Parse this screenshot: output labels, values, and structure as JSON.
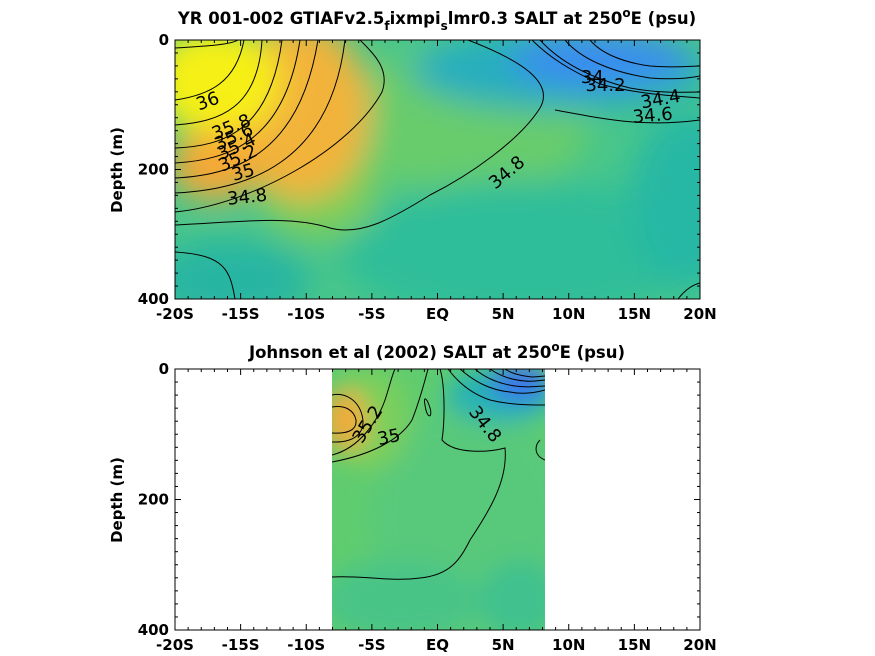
{
  "chart_data": [
    {
      "type": "heatmap",
      "title_main": "YR 001-002 GTIAFv2.5",
      "title_sub1": "f",
      "title_mid": "ixmpi",
      "title_sub2": "s",
      "title_tail": "lmr0.3 SALT at 250",
      "title_sup": "o",
      "title_end": "E (psu)",
      "xlabel": "",
      "ylabel": "Depth (m)",
      "xlim": [
        -20,
        20
      ],
      "ylim": [
        0,
        400
      ],
      "x_ticks": [
        -20,
        -15,
        -10,
        -5,
        0,
        5,
        10,
        15,
        20
      ],
      "x_tick_labels": [
        "-20S",
        "-15S",
        "-10S",
        "-5S",
        "EQ",
        "5N",
        "10N",
        "15N",
        "20N"
      ],
      "y_ticks": [
        0,
        200,
        400
      ],
      "y_tick_labels": [
        "0",
        "200",
        "400"
      ],
      "data_extent_x": [
        -20,
        20
      ],
      "colors": {
        "high": "#f5f31f",
        "mid_high": "#f3ad3a",
        "mid": "#6fcf68",
        "low": "#2ebb9c",
        "fresh": "#3a8df0"
      },
      "contour_labels": [
        {
          "text": "36",
          "x": -17.5,
          "y": 95,
          "angle": -20
        },
        {
          "text": "35.8",
          "x": -15.7,
          "y": 135,
          "angle": -22
        },
        {
          "text": "35.6",
          "x": -15.5,
          "y": 150,
          "angle": -25
        },
        {
          "text": "35.4",
          "x": -15.3,
          "y": 165,
          "angle": -25
        },
        {
          "text": "35.2",
          "x": -15.2,
          "y": 183,
          "angle": -25
        },
        {
          "text": "35",
          "x": -14.8,
          "y": 205,
          "angle": -15
        },
        {
          "text": "34.8",
          "x": -14.5,
          "y": 243,
          "angle": -6
        },
        {
          "text": "34.8",
          "x": 5.3,
          "y": 205,
          "angle": -40
        },
        {
          "text": "34",
          "x": 11.8,
          "y": 58,
          "angle": 0
        },
        {
          "text": "34.2",
          "x": 12.8,
          "y": 70,
          "angle": 0
        },
        {
          "text": "34.4",
          "x": 17,
          "y": 92,
          "angle": -10
        },
        {
          "text": "34.6",
          "x": 16.4,
          "y": 117,
          "angle": -5
        }
      ]
    },
    {
      "type": "heatmap",
      "title_main": "Johnson et al (2002) SALT at 250",
      "title_sup": "o",
      "title_end": "E (psu)",
      "xlabel": "",
      "ylabel": "Depth (m)",
      "xlim": [
        -20,
        20
      ],
      "ylim": [
        0,
        400
      ],
      "x_ticks": [
        -20,
        -15,
        -10,
        -5,
        0,
        5,
        10,
        15,
        20
      ],
      "x_tick_labels": [
        "-20S",
        "-15S",
        "-10S",
        "-5S",
        "EQ",
        "5N",
        "10N",
        "15N",
        "20N"
      ],
      "y_ticks": [
        0,
        200,
        400
      ],
      "y_tick_labels": [
        "0",
        "200",
        "400"
      ],
      "data_extent_x": [
        -8,
        8
      ],
      "colors": {
        "high": "#f3ad3a",
        "mid": "#6fcf68",
        "low": "#2ebb9c",
        "fresh": "#3a6ff0"
      },
      "contour_labels": [
        {
          "text": "35.2",
          "x": -5.3,
          "y": 85,
          "angle": -58
        },
        {
          "text": "35",
          "x": -3.7,
          "y": 105,
          "angle": -12
        },
        {
          "text": "34.8",
          "x": 3.6,
          "y": 85,
          "angle": 52
        }
      ]
    }
  ]
}
